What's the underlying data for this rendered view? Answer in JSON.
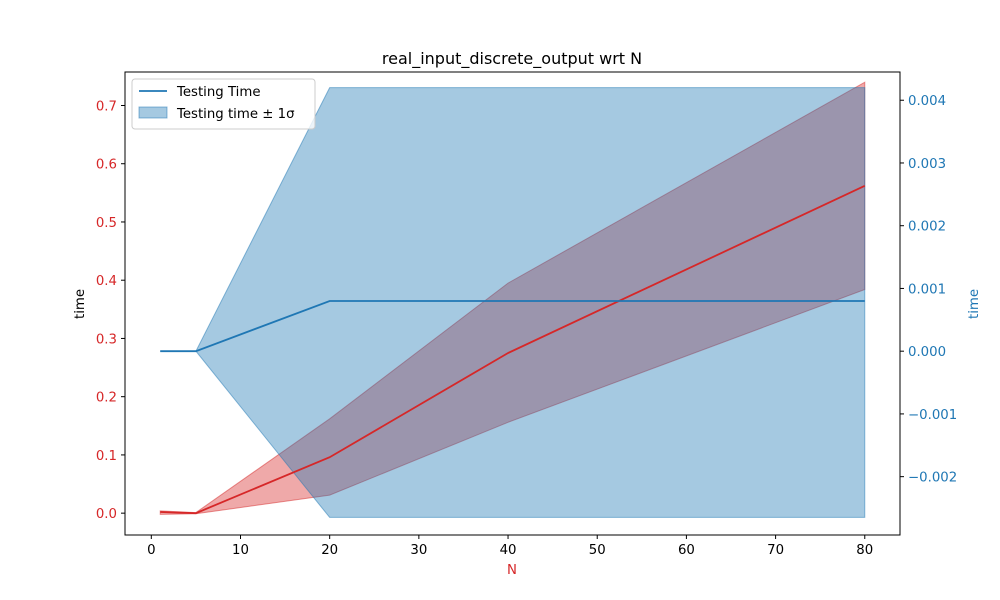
{
  "chart_data": {
    "type": "line",
    "title": "real_input_discrete_output wrt N",
    "xlabel": "N",
    "ylabel_left": "time",
    "ylabel_right": "time",
    "xlim": [
      -2.95,
      83.95
    ],
    "ylim_left": [
      -0.0375,
      0.7575
    ],
    "ylim_right": [
      -0.00293,
      0.00445
    ],
    "x_ticks": [
      0,
      10,
      20,
      30,
      40,
      50,
      60,
      70,
      80
    ],
    "y_left_ticks": [
      0.0,
      0.1,
      0.2,
      0.3,
      0.4,
      0.5,
      0.6,
      0.7
    ],
    "y_left_tick_labels": [
      "0.0",
      "0.1",
      "0.2",
      "0.3",
      "0.4",
      "0.5",
      "0.6",
      "0.7"
    ],
    "y_right_ticks": [
      -0.002,
      -0.001,
      0.0,
      0.001,
      0.002,
      0.003,
      0.004
    ],
    "y_right_tick_labels": [
      "−0.002",
      "−0.001",
      "0.000",
      "0.001",
      "0.002",
      "0.003",
      "0.004"
    ],
    "grid": false,
    "legend_position": "upper-left",
    "legend_entries": [
      "Testing Time",
      "Testing time ± 1σ"
    ],
    "colors": {
      "left_series": "#d62728",
      "right_series": "#1f77b4",
      "left_axis_text": "#d62728",
      "right_axis_text": "#1f77b4"
    },
    "series": [
      {
        "axis": "left",
        "x": [
          1,
          5,
          20,
          40,
          80
        ],
        "values": [
          0.002,
          0.0,
          0.096,
          0.275,
          0.562
        ],
        "band_upper": [
          0.004,
          0.001,
          0.162,
          0.395,
          0.74
        ],
        "band_lower": [
          -0.002,
          -0.001,
          0.031,
          0.156,
          0.384
        ]
      },
      {
        "axis": "right",
        "x": [
          1,
          5,
          20,
          40,
          80
        ],
        "values": [
          0.0,
          0.0,
          0.0008,
          0.0008,
          0.0008
        ],
        "band_upper": [
          0.0,
          0.0,
          0.0042,
          0.0042,
          0.0042
        ],
        "band_lower": [
          0.0,
          0.0,
          -0.00265,
          -0.00265,
          -0.00265
        ]
      }
    ]
  }
}
